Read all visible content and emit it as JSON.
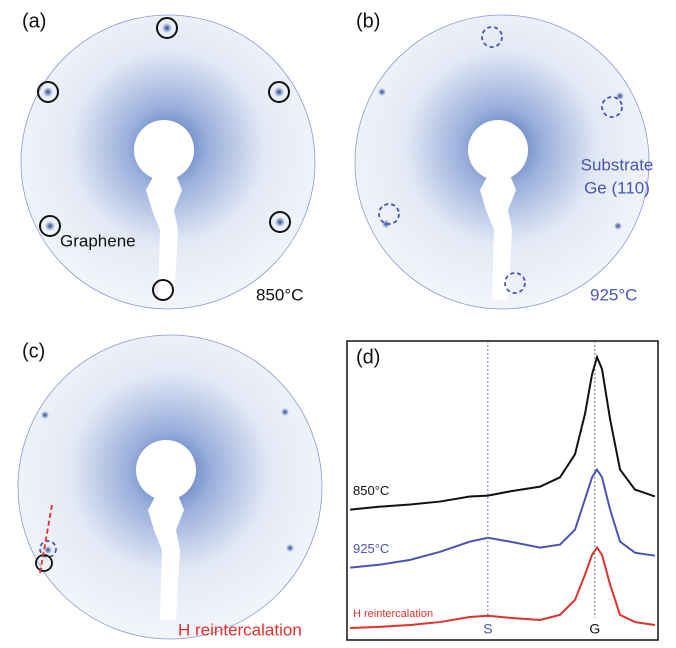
{
  "panels": [
    {
      "label": "(a)",
      "annotations": [
        "Graphene",
        "850°C"
      ]
    },
    {
      "label": "(b)",
      "annotations": [
        "Substrate",
        "Ge (110)",
        "925°C"
      ]
    },
    {
      "label": "(c)",
      "annotations": [
        "H reintercalation"
      ]
    }
  ],
  "chart_data": {
    "type": "line",
    "label": "(d)",
    "xlim": [
      0,
      100
    ],
    "ylim": [
      0,
      100
    ],
    "x": [
      1.0,
      10.6,
      20.3,
      29.9,
      39.5,
      45.3,
      52.4,
      62.1,
      68.5,
      73.3,
      76.5,
      78.8,
      80.4,
      82.0,
      84.6,
      87.8,
      92.6,
      99.0
    ],
    "series": [
      {
        "name": "850°C",
        "color": "#111111",
        "values": [
          43.6,
          44.6,
          45.3,
          46.3,
          48.0,
          48.3,
          49.7,
          51.3,
          54.4,
          62.1,
          75.5,
          88.9,
          94.6,
          90.6,
          73.8,
          57.0,
          50.3,
          48.0
        ]
      },
      {
        "name": "925°C",
        "color": "#4a55b0",
        "values": [
          24.2,
          25.2,
          26.8,
          29.5,
          32.9,
          34.2,
          32.9,
          30.9,
          31.9,
          36.9,
          47.0,
          54.4,
          57.0,
          54.4,
          43.6,
          32.9,
          29.2,
          28.2
        ]
      },
      {
        "name": "H reintercalation",
        "color": "#e0302a",
        "values": [
          4.0,
          4.4,
          5.0,
          6.0,
          7.7,
          8.1,
          7.4,
          6.7,
          8.4,
          13.4,
          21.8,
          28.5,
          30.9,
          28.5,
          18.5,
          8.4,
          6.0,
          5.0
        ]
      }
    ],
    "reference_lines": [
      {
        "label": "S",
        "value": 45.3
      },
      {
        "label": "G",
        "value": 79.7
      }
    ]
  }
}
